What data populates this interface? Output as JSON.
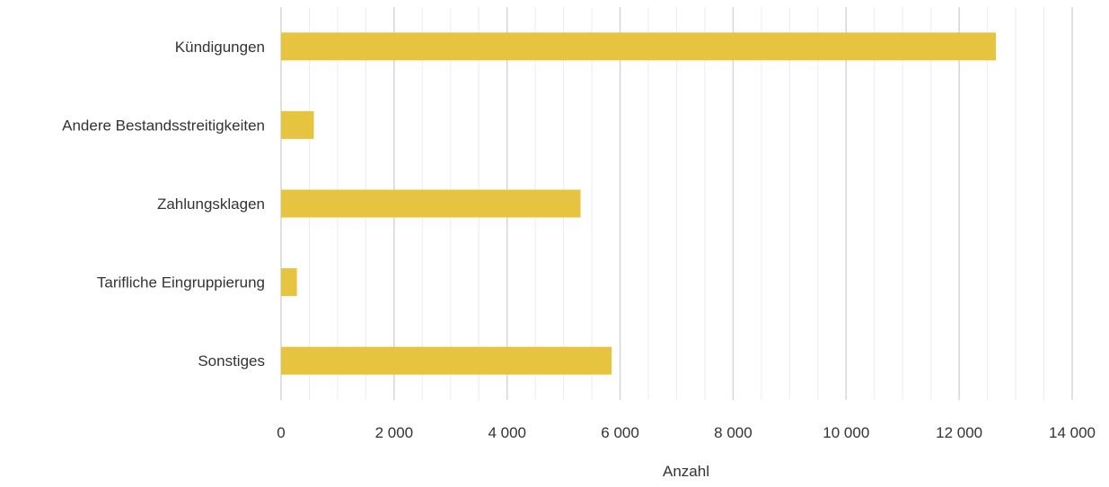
{
  "chart_data": {
    "type": "bar",
    "orientation": "horizontal",
    "categories": [
      "Kündigungen",
      "Andere Bestandsstreitigkeiten",
      "Zahlungsklagen",
      "Tarifliche Eingruppierung",
      "Sonstiges"
    ],
    "values": [
      12650,
      580,
      5300,
      280,
      5850
    ],
    "xlabel": "Anzahl",
    "xlim": [
      0,
      14000
    ],
    "x_ticks": [
      0,
      2000,
      4000,
      6000,
      8000,
      10000,
      12000,
      14000
    ],
    "x_tick_labels": [
      "0",
      "2 000",
      "4 000",
      "6 000",
      "8 000",
      "10 000",
      "12 000",
      "14 000"
    ],
    "grid": "vertical major and minor",
    "bar_color": "#e6c440",
    "major_grid_color": "#d6d6d6",
    "minor_grid_color": "#ececec"
  }
}
